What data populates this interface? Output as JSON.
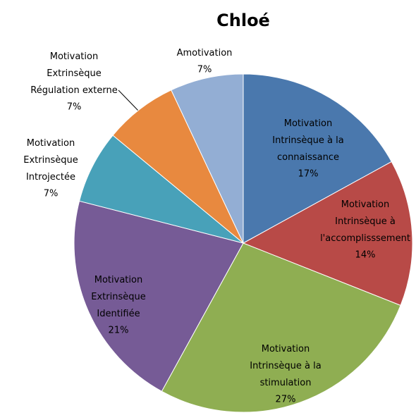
{
  "chart_data": {
    "type": "pie",
    "title": "Chloé",
    "categories": [
      "Motivation\nIntrinsèque à la\nconnaissance",
      "Motivation\nIntrinsèque à\nl'accomplisssement",
      "Motivation\nIntrinsèque à la\nstimulation",
      "Motivation\nExtrinsèque\nIdentifiée",
      "Motivation\nExtrinsèque\nIntrojectée",
      "Motivation\nExtrinsèque\nRégulation externe",
      "Amotivation"
    ],
    "values": [
      17,
      14,
      27,
      21,
      7,
      7,
      7
    ],
    "value_labels": [
      "17%",
      "14%",
      "27%",
      "21%",
      "7%",
      "7%",
      "7%"
    ],
    "colors": [
      "#4a78ad",
      "#b84a47",
      "#8fae52",
      "#765b96",
      "#48a1b9",
      "#e8893f",
      "#93aed4"
    ]
  }
}
